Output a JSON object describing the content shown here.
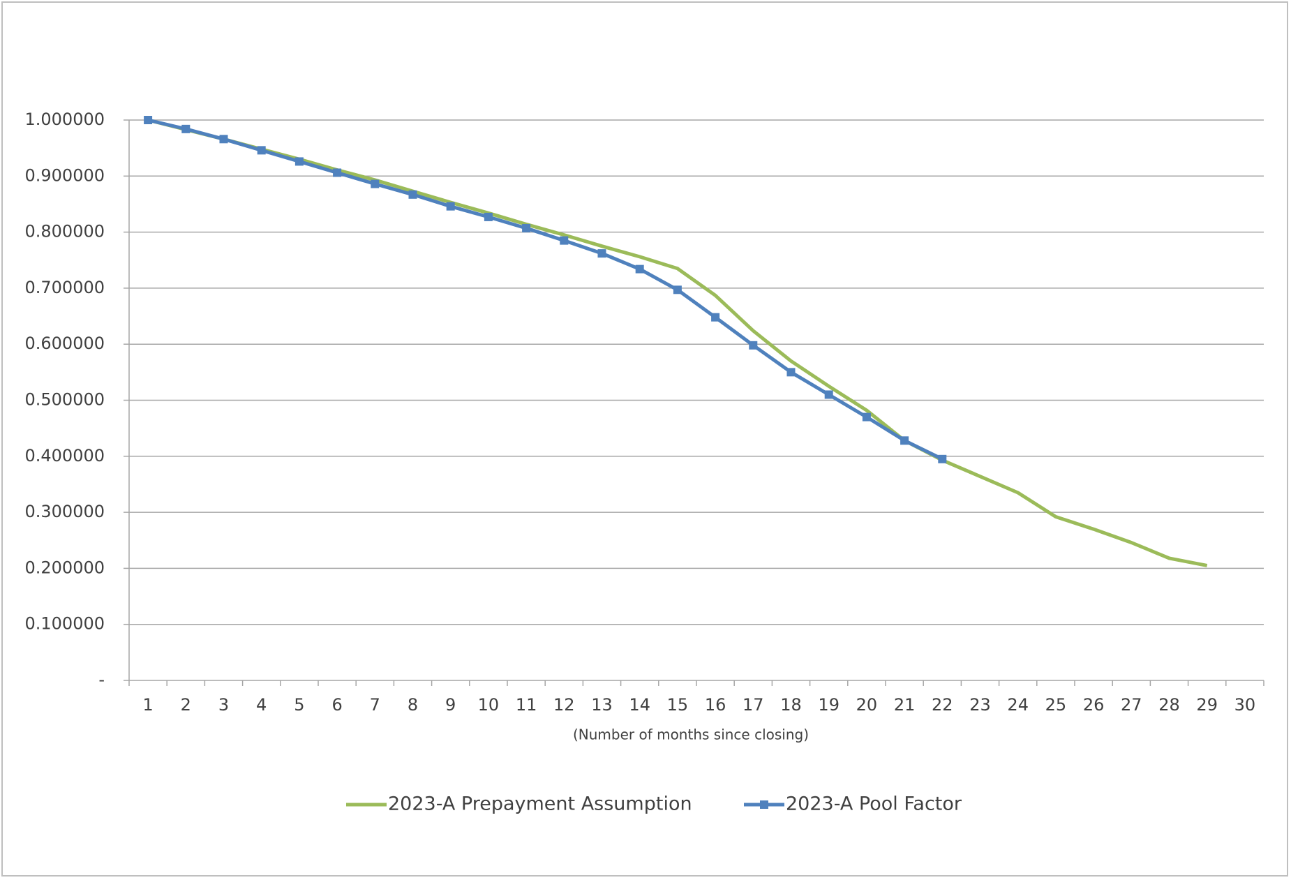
{
  "chart_data": {
    "type": "line",
    "x_label": "(Number  of months since closing)",
    "categories": [
      1,
      2,
      3,
      4,
      5,
      6,
      7,
      8,
      9,
      10,
      11,
      12,
      13,
      14,
      15,
      16,
      17,
      18,
      19,
      20,
      21,
      22,
      23,
      24,
      25,
      26,
      27,
      28,
      29,
      30
    ],
    "series": [
      {
        "name": "2023-A Prepayment Assumption",
        "color": "#9bbb59",
        "marker": false,
        "values": [
          1.0,
          0.983,
          0.966,
          0.948,
          0.93,
          0.911,
          0.893,
          0.873,
          0.853,
          0.834,
          0.814,
          0.795,
          0.775,
          0.756,
          0.735,
          0.687,
          0.624,
          0.57,
          0.525,
          0.482,
          0.428,
          0.393,
          0.364,
          0.335,
          0.292,
          0.27,
          0.246,
          0.218,
          0.205,
          null
        ]
      },
      {
        "name": "2023-A Pool Factor",
        "color": "#4f81bd",
        "marker": true,
        "values": [
          1.0,
          0.984,
          0.966,
          0.946,
          0.926,
          0.906,
          0.886,
          0.867,
          0.846,
          0.827,
          0.807,
          0.785,
          0.762,
          0.734,
          0.697,
          0.648,
          0.598,
          0.55,
          0.51,
          0.47,
          0.428,
          0.395,
          null,
          null,
          null,
          null,
          null,
          null,
          null,
          null
        ]
      }
    ],
    "ylim": [
      0,
      1
    ],
    "yticks": [
      {
        "value": 0,
        "label": "-"
      },
      {
        "value": 0.1,
        "label": "0.100000"
      },
      {
        "value": 0.2,
        "label": "0.200000"
      },
      {
        "value": 0.3,
        "label": "0.300000"
      },
      {
        "value": 0.4,
        "label": "0.400000"
      },
      {
        "value": 0.5,
        "label": "0.500000"
      },
      {
        "value": 0.6,
        "label": "0.600000"
      },
      {
        "value": 0.7,
        "label": "0.700000"
      },
      {
        "value": 0.8,
        "label": "0.800000"
      },
      {
        "value": 0.9,
        "label": "0.900000"
      },
      {
        "value": 1,
        "label": "1.000000"
      }
    ],
    "grid": true,
    "legend": "bottom"
  }
}
